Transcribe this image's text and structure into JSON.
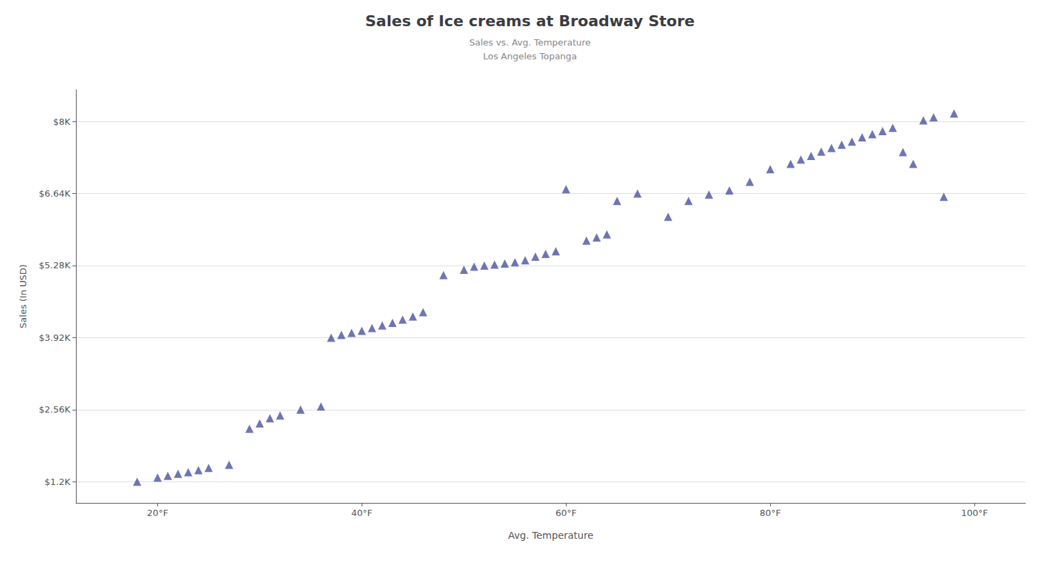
{
  "chart_data": {
    "type": "scatter",
    "title": "Sales of Ice creams at Broadway Store",
    "subtitle": [
      "Sales vs. Avg. Temperature",
      "Los Angeles Topanga"
    ],
    "xlabel": "Avg. Temperature",
    "ylabel": "Sales (In USD)",
    "color": "#4a52a3",
    "marker": "triangle",
    "grid": "y",
    "x": [
      18,
      20,
      21,
      22,
      23,
      24,
      25,
      27,
      29,
      30,
      31,
      32,
      34,
      36,
      37,
      38,
      39,
      40,
      41,
      42,
      43,
      44,
      45,
      46,
      48,
      50,
      51,
      52,
      53,
      54,
      55,
      56,
      57,
      58,
      59,
      60,
      62,
      63,
      64,
      65,
      67,
      70,
      72,
      74,
      76,
      78,
      80,
      82,
      83,
      84,
      85,
      86,
      87,
      88,
      89,
      90,
      91,
      92,
      93,
      94,
      95,
      96,
      97,
      98
    ],
    "values": [
      1200,
      1280,
      1310,
      1350,
      1380,
      1420,
      1460,
      1520,
      2200,
      2300,
      2400,
      2450,
      2560,
      2620,
      3920,
      3970,
      4010,
      4050,
      4100,
      4150,
      4200,
      4260,
      4320,
      4400,
      5100,
      5200,
      5260,
      5280,
      5300,
      5320,
      5340,
      5380,
      5450,
      5500,
      5550,
      6720,
      5750,
      5810,
      5870,
      6500,
      6640,
      6200,
      6500,
      6620,
      6700,
      6860,
      7100,
      7200,
      7280,
      7350,
      7430,
      7500,
      7560,
      7620,
      7700,
      7760,
      7820,
      7880,
      7420,
      7200,
      8020,
      8080,
      6580,
      8150
    ],
    "xlim": [
      12,
      105
    ],
    "xticks": [
      {
        "value": 20,
        "label": "20°F"
      },
      {
        "value": 40,
        "label": "40°F"
      },
      {
        "value": 60,
        "label": "60°F"
      },
      {
        "value": 80,
        "label": "80°F"
      },
      {
        "value": 100,
        "label": "100°F"
      }
    ],
    "ylim": [
      800,
      8600
    ],
    "yticks": [
      {
        "value": 1200,
        "label": "$1.2K"
      },
      {
        "value": 2560,
        "label": "$2.56K"
      },
      {
        "value": 3920,
        "label": "$3.92K"
      },
      {
        "value": 5280,
        "label": "$5.28K"
      },
      {
        "value": 6640,
        "label": "$6.64K"
      },
      {
        "value": 8000,
        "label": "$8K"
      }
    ]
  }
}
